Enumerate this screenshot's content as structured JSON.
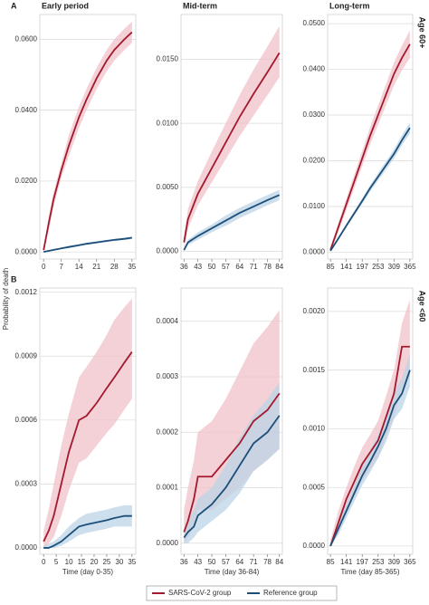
{
  "figure": {
    "y_label": "Probability of death"
  },
  "chart_data": [
    {
      "type": "line",
      "title": "Early period",
      "panel_label": "A",
      "x": [
        0,
        2,
        4,
        7,
        10,
        14,
        17,
        21,
        25,
        28,
        32,
        35
      ],
      "series": [
        {
          "name": "SARS-CoV-2 group",
          "color": "#a3192e",
          "band_color": "#f0c2c8",
          "values": [
            0.0005,
            0.008,
            0.015,
            0.023,
            0.03,
            0.038,
            0.043,
            0.049,
            0.054,
            0.057,
            0.06,
            0.062
          ],
          "lower": [
            0,
            0.006,
            0.013,
            0.021,
            0.027,
            0.035,
            0.04,
            0.046,
            0.051,
            0.054,
            0.057,
            0.059
          ],
          "upper": [
            0.001,
            0.01,
            0.017,
            0.025,
            0.033,
            0.041,
            0.046,
            0.052,
            0.057,
            0.06,
            0.063,
            0.065
          ]
        },
        {
          "name": "Reference group",
          "color": "#1b4f7a",
          "band_color": "#bcd3e6",
          "values": [
            0,
            0.0003,
            0.0006,
            0.001,
            0.0014,
            0.0019,
            0.0023,
            0.0027,
            0.0031,
            0.0034,
            0.0037,
            0.004
          ],
          "lower": [
            0,
            0.0001,
            0.0004,
            0.0008,
            0.0011,
            0.0016,
            0.002,
            0.0024,
            0.0028,
            0.0031,
            0.0034,
            0.0036
          ],
          "upper": [
            0.0001,
            0.0005,
            0.0008,
            0.0012,
            0.0017,
            0.0022,
            0.0026,
            0.003,
            0.0034,
            0.0037,
            0.004,
            0.0044
          ]
        }
      ],
      "xlim": [
        -1.5,
        36.5
      ],
      "xticks": [
        0,
        7,
        14,
        21,
        28,
        35
      ],
      "ylim": [
        -0.002,
        0.067
      ],
      "yticks": [
        {
          "value": 0,
          "label": "0.0000"
        },
        {
          "value": 0.02,
          "label": "0.0200"
        },
        {
          "value": 0.04,
          "label": "0.0400"
        },
        {
          "value": 0.06,
          "label": "0.0600"
        }
      ],
      "grid": true
    },
    {
      "type": "line",
      "title": "Mid-term",
      "x": [
        36,
        38,
        43,
        50,
        57,
        64,
        71,
        78,
        84
      ],
      "series": [
        {
          "name": "SARS-CoV-2 group",
          "color": "#a3192e",
          "band_color": "#f0c2c8",
          "values": [
            0.0007,
            0.0025,
            0.0045,
            0.0065,
            0.0085,
            0.0105,
            0.0123,
            0.014,
            0.0155
          ],
          "lower": [
            0.0002,
            0.0018,
            0.0036,
            0.0054,
            0.0072,
            0.009,
            0.0106,
            0.0122,
            0.0136
          ],
          "upper": [
            0.0012,
            0.0033,
            0.0055,
            0.0078,
            0.01,
            0.0122,
            0.0142,
            0.016,
            0.0176
          ]
        },
        {
          "name": "Reference group",
          "color": "#1b4f7a",
          "band_color": "#bcd3e6",
          "values": [
            0.0001,
            0.0007,
            0.0012,
            0.0018,
            0.0024,
            0.003,
            0.0035,
            0.004,
            0.0044
          ],
          "lower": [
            0,
            0.0005,
            0.0009,
            0.0015,
            0.002,
            0.0026,
            0.0031,
            0.0036,
            0.004
          ],
          "upper": [
            0.0002,
            0.0009,
            0.0015,
            0.0021,
            0.0028,
            0.0034,
            0.0039,
            0.0044,
            0.0048
          ]
        }
      ],
      "xlim": [
        34.5,
        85.5
      ],
      "xticks": [
        36,
        43,
        50,
        57,
        64,
        71,
        78,
        84
      ],
      "ylim": [
        -0.0006,
        0.0185
      ],
      "yticks": [
        {
          "value": 0,
          "label": "0.0000"
        },
        {
          "value": 0.005,
          "label": "0.0050"
        },
        {
          "value": 0.01,
          "label": "0.0100"
        },
        {
          "value": 0.015,
          "label": "0.0150"
        }
      ],
      "grid": true
    },
    {
      "type": "line",
      "title": "Long-term",
      "side_label": "Age 60+",
      "x": [
        85,
        113,
        141,
        169,
        197,
        225,
        253,
        281,
        309,
        337,
        365
      ],
      "series": [
        {
          "name": "SARS-CoV-2 group",
          "color": "#a3192e",
          "band_color": "#f0c2c8",
          "values": [
            0.0005,
            0.0055,
            0.0105,
            0.0155,
            0.0205,
            0.0255,
            0.03,
            0.0345,
            0.039,
            0.0425,
            0.0455
          ],
          "lower": [
            0,
            0.0045,
            0.0092,
            0.014,
            0.0188,
            0.0236,
            0.0279,
            0.0322,
            0.0365,
            0.0398,
            0.0425
          ],
          "upper": [
            0.001,
            0.0065,
            0.0118,
            0.017,
            0.0222,
            0.0274,
            0.0321,
            0.0368,
            0.0415,
            0.0452,
            0.0485
          ]
        },
        {
          "name": "Reference group",
          "color": "#1b4f7a",
          "band_color": "#bcd3e6",
          "values": [
            0.0003,
            0.003,
            0.0058,
            0.0085,
            0.0112,
            0.014,
            0.0165,
            0.019,
            0.0215,
            0.0245,
            0.0272
          ],
          "lower": [
            0.0002,
            0.0027,
            0.0054,
            0.008,
            0.0106,
            0.0133,
            0.0157,
            0.0181,
            0.0205,
            0.0234,
            0.026
          ],
          "upper": [
            0.0004,
            0.0033,
            0.0062,
            0.009,
            0.0118,
            0.0147,
            0.0173,
            0.0199,
            0.0225,
            0.0256,
            0.0284
          ]
        }
      ],
      "xlim": [
        75,
        375
      ],
      "xticks": [
        85,
        141,
        197,
        253,
        309,
        365
      ],
      "ylim": [
        -0.0015,
        0.052
      ],
      "yticks": [
        {
          "value": 0,
          "label": "0.0000"
        },
        {
          "value": 0.01,
          "label": "0.0100"
        },
        {
          "value": 0.02,
          "label": "0.0200"
        },
        {
          "value": 0.03,
          "label": "0.0300"
        },
        {
          "value": 0.04,
          "label": "0.0400"
        },
        {
          "value": 0.05,
          "label": "0.0500"
        }
      ],
      "grid": true
    },
    {
      "type": "line",
      "panel_label": "B",
      "x_label": "Time (day 0-35)",
      "x": [
        0,
        2,
        4,
        7,
        10,
        14,
        17,
        21,
        25,
        28,
        32,
        35
      ],
      "series": [
        {
          "name": "SARS-CoV-2 group",
          "color": "#a3192e",
          "band_color": "#f0c2c8",
          "values": [
            3e-05,
            8e-05,
            0.00015,
            0.0003,
            0.00045,
            0.0006,
            0.00062,
            0.00068,
            0.00075,
            0.0008,
            0.00087,
            0.00092
          ],
          "lower": [
            0,
            2e-05,
            5e-05,
            0.00015,
            0.00027,
            0.0004,
            0.00042,
            0.00048,
            0.00054,
            0.00058,
            0.00065,
            0.0007
          ],
          "upper": [
            8e-05,
            0.00018,
            0.0003,
            0.00048,
            0.00063,
            0.0008,
            0.00085,
            0.00092,
            0.001,
            0.00107,
            0.00113,
            0.00117
          ]
        },
        {
          "name": "Reference group",
          "color": "#1b4f7a",
          "band_color": "#bcd3e6",
          "values": [
            0,
            0,
            1e-05,
            3e-05,
            6e-05,
            0.0001,
            0.00011,
            0.00012,
            0.00013,
            0.00014,
            0.00015,
            0.00015
          ],
          "lower": [
            0,
            0,
            0,
            1e-05,
            3e-05,
            6e-05,
            7e-05,
            8e-05,
            9e-05,
            0.0001,
            0.0001,
            0.0001
          ],
          "upper": [
            1e-05,
            2e-05,
            3e-05,
            6e-05,
            0.0001,
            0.00014,
            0.00016,
            0.00017,
            0.00018,
            0.00019,
            0.0002,
            0.0002
          ]
        }
      ],
      "xlim": [
        -1.5,
        36.5
      ],
      "xticks": [
        0,
        5,
        10,
        15,
        20,
        25,
        30,
        35
      ],
      "ylim": [
        -3e-05,
        0.00122
      ],
      "yticks": [
        {
          "value": 0,
          "label": "0.0000"
        },
        {
          "value": 0.0003,
          "label": "0.0003"
        },
        {
          "value": 0.0006,
          "label": "0.0006"
        },
        {
          "value": 0.0009,
          "label": "0.0009"
        },
        {
          "value": 0.0012,
          "label": "0.0012"
        }
      ],
      "grid": true
    },
    {
      "type": "line",
      "x_label": "Time (day 36-84)",
      "x": [
        36,
        38,
        41,
        43,
        50,
        57,
        64,
        71,
        78,
        84
      ],
      "series": [
        {
          "name": "SARS-CoV-2 group",
          "color": "#a3192e",
          "band_color": "#f0c2c8",
          "values": [
            2e-05,
            4e-05,
            8e-05,
            0.00012,
            0.00012,
            0.00015,
            0.00018,
            0.00022,
            0.00024,
            0.00027
          ],
          "lower": [
            0,
            1e-05,
            3e-05,
            6e-05,
            6e-05,
            8e-05,
            0.0001,
            0.00013,
            0.00015,
            0.00017
          ],
          "upper": [
            6e-05,
            0.0001,
            0.00015,
            0.0002,
            0.00022,
            0.00026,
            0.00031,
            0.00036,
            0.00039,
            0.00042
          ]
        },
        {
          "name": "Reference group",
          "color": "#1b4f7a",
          "band_color": "#bcd3e6",
          "values": [
            1e-05,
            2e-05,
            3e-05,
            5e-05,
            7e-05,
            0.0001,
            0.00014,
            0.00018,
            0.0002,
            0.00023
          ],
          "lower": [
            0,
            0,
            1e-05,
            2e-05,
            4e-05,
            6e-05,
            9e-05,
            0.00013,
            0.00015,
            0.00017
          ],
          "upper": [
            2e-05,
            4e-05,
            6e-05,
            8e-05,
            0.0001,
            0.00014,
            0.00019,
            0.00023,
            0.00026,
            0.00029
          ]
        }
      ],
      "xlim": [
        34.5,
        85.5
      ],
      "xticks": [
        36,
        43,
        50,
        57,
        64,
        71,
        78,
        84
      ],
      "ylim": [
        -2e-05,
        0.00046
      ],
      "yticks": [
        {
          "value": 0,
          "label": "0.0000"
        },
        {
          "value": 0.0001,
          "label": "0.0001"
        },
        {
          "value": 0.0002,
          "label": "0.0002"
        },
        {
          "value": 0.0003,
          "label": "0.0003"
        },
        {
          "value": 0.0004,
          "label": "0.0004"
        }
      ],
      "grid": true
    },
    {
      "type": "line",
      "side_label": "Age <60",
      "x_label": "Time (day 85-365)",
      "x": [
        85,
        113,
        141,
        169,
        197,
        225,
        253,
        281,
        309,
        337,
        365
      ],
      "series": [
        {
          "name": "SARS-CoV-2 group",
          "color": "#a3192e",
          "band_color": "#f0c2c8",
          "values": [
            0,
            0.0002,
            0.0004,
            0.00055,
            0.0007,
            0.0008,
            0.0009,
            0.0011,
            0.0013,
            0.0017,
            0.0017
          ],
          "lower": [
            0,
            0.0001,
            0.00028,
            0.00042,
            0.00056,
            0.00066,
            0.00075,
            0.00093,
            0.0011,
            0.00135,
            0.00145
          ],
          "upper": [
            5e-05,
            0.0003,
            0.0005,
            0.00068,
            0.00084,
            0.00095,
            0.00107,
            0.00128,
            0.0015,
            0.0019,
            0.0021
          ]
        },
        {
          "name": "Reference group",
          "color": "#1b4f7a",
          "band_color": "#bcd3e6",
          "values": [
            0,
            0.00015,
            0.0003,
            0.00045,
            0.0006,
            0.00072,
            0.00085,
            0.001,
            0.0012,
            0.0013,
            0.0015
          ],
          "lower": [
            0,
            0.0001,
            0.00024,
            0.00038,
            0.00052,
            0.00063,
            0.00075,
            0.00089,
            0.00108,
            0.00117,
            0.00136
          ],
          "upper": [
            2e-05,
            0.0002,
            0.00036,
            0.00052,
            0.00068,
            0.00081,
            0.00095,
            0.00111,
            0.00132,
            0.00143,
            0.00164
          ]
        }
      ],
      "xlim": [
        75,
        375
      ],
      "xticks": [
        85,
        141,
        197,
        253,
        309,
        365
      ],
      "ylim": [
        -7e-05,
        0.0022
      ],
      "yticks": [
        {
          "value": 0,
          "label": "0.0000"
        },
        {
          "value": 0.0005,
          "label": "0.0005"
        },
        {
          "value": 0.001,
          "label": "0.0010"
        },
        {
          "value": 0.0015,
          "label": "0.0015"
        },
        {
          "value": 0.002,
          "label": "0.0020"
        }
      ],
      "grid": true
    }
  ]
}
